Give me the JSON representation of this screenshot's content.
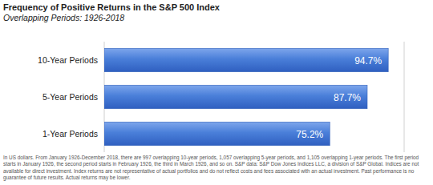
{
  "chart_data": {
    "type": "bar",
    "orientation": "horizontal",
    "title": "Frequency of Positive Returns in the S&P 500 Index",
    "subtitle": "Overlapping Periods: 1926-2018",
    "categories": [
      "10-Year Periods",
      "5-Year Periods",
      "1-Year Periods"
    ],
    "values": [
      94.7,
      87.7,
      75.2
    ],
    "value_labels": [
      "94.7%",
      "87.7%",
      "75.2%"
    ],
    "data_labels": true,
    "color": "#4a7fd9",
    "xlim": [
      0,
      100
    ],
    "xticks": [
      0,
      100
    ],
    "grid": true,
    "tick_labels": false,
    "annotations": [
      "In US dollars. From January 1926-December 2018, there are 997 overlapping 10-year periods, 1,057 overlapping 5-year periods, and 1,105 overlapping 1-year periods. The first period starts in January 1926, the second period starts in February 1926, the third in March 1926, and so on. S&P data: S&P Dow Jones Indices LLC, a division of S&P Global. Indices are not available for direct investment. Index returns are not representative of actual portfolios and do not reflect costs and fees associated with an actual investment. Past performance is no guarantee of future results. Actual returns may be lower."
    ]
  }
}
